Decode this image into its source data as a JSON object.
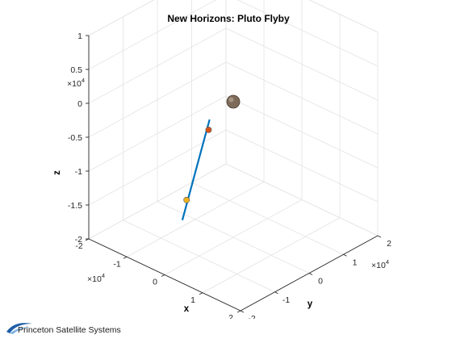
{
  "chart_data": {
    "type": "line",
    "projection": "3d",
    "title": "New Horizons: Pluto Flyby",
    "xlabel": "x",
    "ylabel": "y",
    "zlabel": "z",
    "x_ticks": [
      "-2",
      "-1",
      "0",
      "1",
      "2"
    ],
    "x_multiplier": {
      "base": "×10",
      "exp": "4"
    },
    "y_ticks": [
      "-2",
      "-1",
      "0",
      "1",
      "2"
    ],
    "y_multiplier": {
      "base": "×10",
      "exp": "4"
    },
    "z_ticks": [
      "-2",
      "-1.5",
      "-1",
      "-0.5",
      "0",
      "0.5",
      "1"
    ],
    "z_multiplier": {
      "base": "×10",
      "exp": "4"
    },
    "xlim": [
      -20000,
      20000
    ],
    "ylim": [
      -20000,
      20000
    ],
    "zlim": [
      -20000,
      10000
    ],
    "grid": true,
    "series": [
      {
        "type": "line",
        "color": "#0072bd",
        "points": [
          {
            "x": 1500,
            "y": -16500,
            "z": -12500
          },
          {
            "x": -18000,
            "y": 13000,
            "z": -11000
          }
        ]
      }
    ],
    "markers": [
      {
        "x": 0,
        "y": 0,
        "z": 0,
        "color": "#7d6a58",
        "size": "large"
      },
      {
        "x": -1000,
        "y": -12500,
        "z": -11300,
        "color": "#edb120",
        "size": "small"
      },
      {
        "x": -16000,
        "y": 10500,
        "z": -11300,
        "color": "#d95319",
        "size": "small"
      }
    ]
  },
  "footer": {
    "logo_text": "Princeton Satellite Systems",
    "logo_colors": [
      "#1f5fa8",
      "#7fb3e0"
    ]
  }
}
